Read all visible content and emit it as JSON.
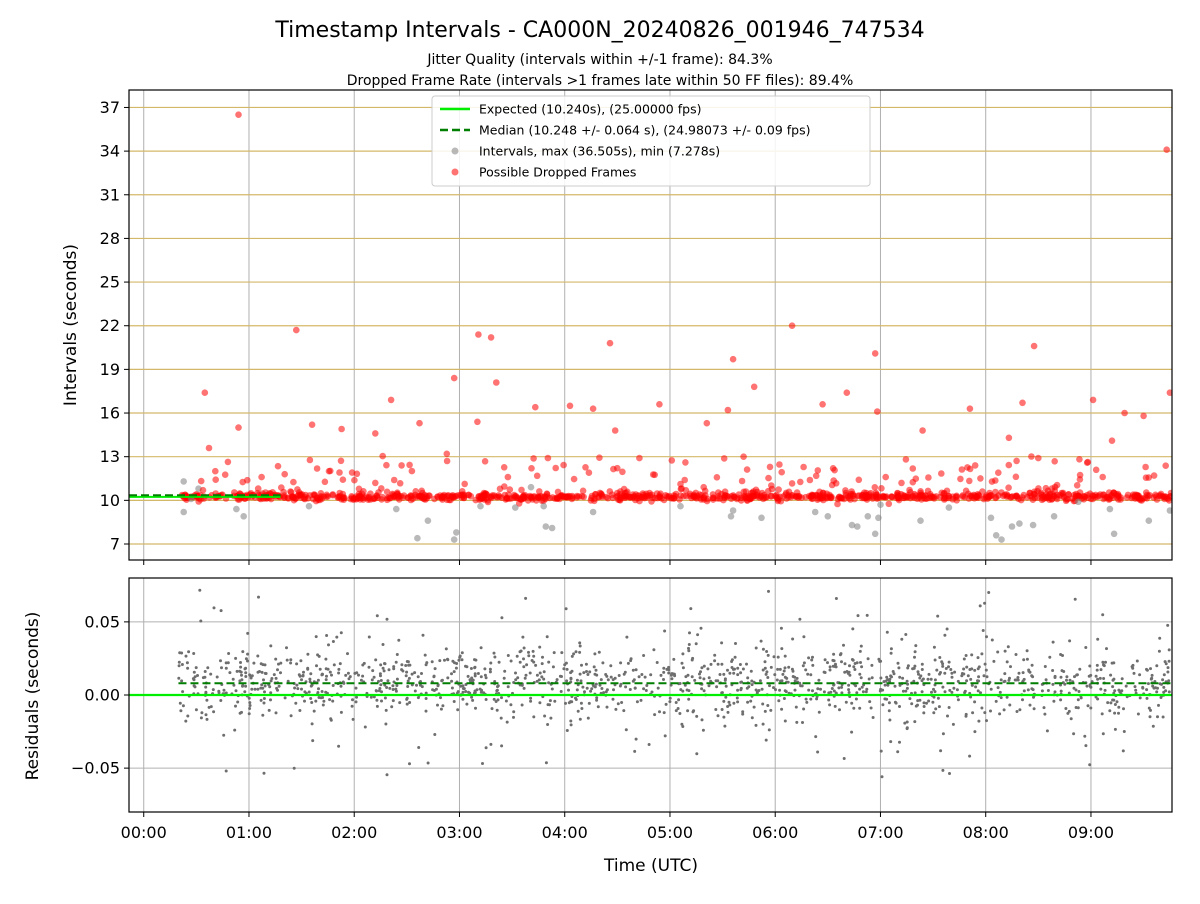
{
  "title": "Timestamp Intervals - CA000N_20240826_001946_747534",
  "subtitle1": "Jitter Quality (intervals within +/-1 frame): 84.3%",
  "subtitle2": "Dropped Frame Rate (intervals >1 frames late within 50 FF files): 89.4%",
  "colors": {
    "expected": "#00ee00",
    "median": "#007f00",
    "normal": "#808080",
    "dropped": "#ff0000",
    "grid_top": "#d4b86a",
    "grid": "#b0b0b0"
  },
  "chart_data": [
    {
      "type": "scatter",
      "panel": "intervals",
      "ylabel": "Intervals (seconds)",
      "xlabel": "",
      "xlim_hours": [
        -0.14,
        9.77
      ],
      "ylim": [
        5.9,
        38.2
      ],
      "yticks": [
        7,
        10,
        13,
        16,
        19,
        22,
        25,
        28,
        31,
        34,
        37
      ],
      "ytick_labels": [
        "7",
        "10",
        "13",
        "16",
        "19",
        "22",
        "25",
        "28",
        "31",
        "34",
        "37"
      ],
      "legend": {
        "position": "top-center",
        "entries": [
          "Expected (10.240s), (25.00000 fps)",
          "Median (10.248 +/- 0.064 s), (24.98073 +/- 0.09 fps)",
          "Intervals, max (36.505s), min (7.278s)",
          "Possible Dropped Frames"
        ]
      },
      "expected_line": {
        "value": 10.24,
        "x_hours": [
          -0.14,
          1.3
        ]
      },
      "median_line": {
        "value": 10.248,
        "x_hours": [
          -0.14,
          1.3
        ]
      },
      "series": [
        {
          "name": "Possible Dropped Frames",
          "points": [
            [
              0.9,
              36.5
            ],
            [
              9.72,
              34.1
            ],
            [
              6.16,
              22.0
            ],
            [
              1.45,
              21.7
            ],
            [
              3.18,
              21.4
            ],
            [
              3.3,
              21.2
            ],
            [
              4.43,
              20.8
            ],
            [
              8.46,
              20.6
            ],
            [
              6.95,
              20.1
            ],
            [
              5.6,
              19.7
            ],
            [
              3.35,
              18.1
            ],
            [
              2.95,
              18.4
            ],
            [
              5.8,
              17.8
            ],
            [
              0.58,
              17.4
            ],
            [
              6.68,
              17.4
            ],
            [
              9.75,
              17.4
            ],
            [
              2.35,
              16.9
            ],
            [
              9.02,
              16.9
            ],
            [
              4.05,
              16.5
            ],
            [
              4.9,
              16.6
            ],
            [
              3.72,
              16.4
            ],
            [
              7.85,
              16.3
            ],
            [
              9.32,
              16.0
            ],
            [
              6.45,
              16.6
            ],
            [
              6.97,
              16.1
            ],
            [
              1.6,
              15.2
            ],
            [
              0.9,
              15.0
            ],
            [
              4.48,
              14.8
            ],
            [
              5.35,
              15.3
            ],
            [
              8.35,
              16.7
            ],
            [
              5.55,
              16.2
            ],
            [
              2.62,
              15.3
            ],
            [
              3.17,
              15.4
            ],
            [
              1.88,
              14.9
            ],
            [
              2.2,
              14.6
            ],
            [
              4.27,
              16.3
            ],
            [
              7.4,
              14.8
            ],
            [
              0.62,
              13.6
            ],
            [
              8.22,
              14.3
            ],
            [
              7.9,
              12.4
            ],
            [
              9.5,
              15.8
            ],
            [
              9.2,
              14.1
            ],
            [
              8.5,
              12.9
            ],
            [
              1.12,
              11.6
            ],
            [
              7.2,
              11.2
            ],
            [
              2.88,
              13.2
            ],
            [
              3.84,
              12.9
            ],
            [
              4.71,
              12.9
            ],
            [
              6.55,
              12.2
            ],
            [
              5.7,
              13.0
            ],
            [
              6.33,
              11.4
            ],
            [
              0.68,
              12.0
            ],
            [
              1.76,
              12.0
            ],
            [
              2.45,
              12.4
            ],
            [
              3.46,
              11.6
            ],
            [
              4.23,
              11.9
            ],
            [
              5.14,
              11.4
            ],
            [
              5.95,
              12.3
            ],
            [
              7.05,
              11.6
            ],
            [
              8.12,
              11.9
            ],
            [
              9.05,
              12.1
            ],
            [
              9.6,
              11.7
            ]
          ]
        },
        {
          "name": "Intervals",
          "points": [
            [
              0.38,
              11.3
            ],
            [
              0.45,
              10.1
            ],
            [
              0.52,
              10.8
            ],
            [
              0.38,
              9.2
            ],
            [
              0.88,
              9.4
            ],
            [
              0.95,
              8.9
            ],
            [
              1.57,
              9.6
            ],
            [
              2.4,
              9.4
            ],
            [
              2.6,
              7.4
            ],
            [
              2.7,
              8.6
            ],
            [
              2.95,
              7.3
            ],
            [
              2.97,
              7.8
            ],
            [
              3.2,
              9.6
            ],
            [
              3.53,
              9.5
            ],
            [
              3.68,
              10.9
            ],
            [
              3.8,
              9.6
            ],
            [
              3.82,
              8.2
            ],
            [
              3.88,
              8.1
            ],
            [
              4.27,
              9.2
            ],
            [
              5.1,
              9.6
            ],
            [
              5.58,
              8.9
            ],
            [
              5.6,
              9.3
            ],
            [
              5.87,
              8.8
            ],
            [
              6.38,
              9.2
            ],
            [
              6.5,
              8.9
            ],
            [
              6.73,
              8.3
            ],
            [
              6.78,
              8.2
            ],
            [
              6.88,
              8.9
            ],
            [
              6.95,
              7.7
            ],
            [
              6.98,
              8.8
            ],
            [
              7.0,
              9.7
            ],
            [
              7.38,
              8.6
            ],
            [
              7.65,
              9.5
            ],
            [
              8.05,
              8.8
            ],
            [
              8.1,
              7.6
            ],
            [
              8.15,
              7.3
            ],
            [
              8.25,
              8.2
            ],
            [
              8.32,
              8.4
            ],
            [
              8.45,
              8.3
            ],
            [
              8.65,
              8.9
            ],
            [
              8.88,
              9.9
            ],
            [
              9.18,
              9.4
            ],
            [
              9.22,
              7.7
            ],
            [
              9.55,
              8.6
            ],
            [
              9.75,
              9.3
            ]
          ]
        }
      ]
    },
    {
      "type": "scatter",
      "panel": "residuals",
      "ylabel": "Residuals (seconds)",
      "xlabel": "Time (UTC)",
      "xlim_hours": [
        -0.14,
        9.77
      ],
      "ylim": [
        -0.08,
        0.08
      ],
      "yticks": [
        -0.05,
        0.0,
        0.05
      ],
      "ytick_labels": [
        "−0.05",
        "0.00",
        "0.05"
      ],
      "xticks_hours": [
        0,
        1,
        2,
        3,
        4,
        5,
        6,
        7,
        8,
        9
      ],
      "xtick_labels": [
        "00:00",
        "01:00",
        "02:00",
        "03:00",
        "04:00",
        "05:00",
        "06:00",
        "07:00",
        "08:00",
        "09:00"
      ],
      "expected_line": {
        "value": 0.0,
        "x_hours": [
          -0.14,
          9.77
        ]
      },
      "median_line": {
        "value": 0.008,
        "x_hours": [
          0.33,
          9.77
        ]
      },
      "series": [
        {
          "name": "Residuals",
          "x_range_hours": [
            0.33,
            9.75
          ],
          "center": 0.008,
          "spread": 0.012,
          "outlier_spread": 0.04
        }
      ]
    }
  ]
}
